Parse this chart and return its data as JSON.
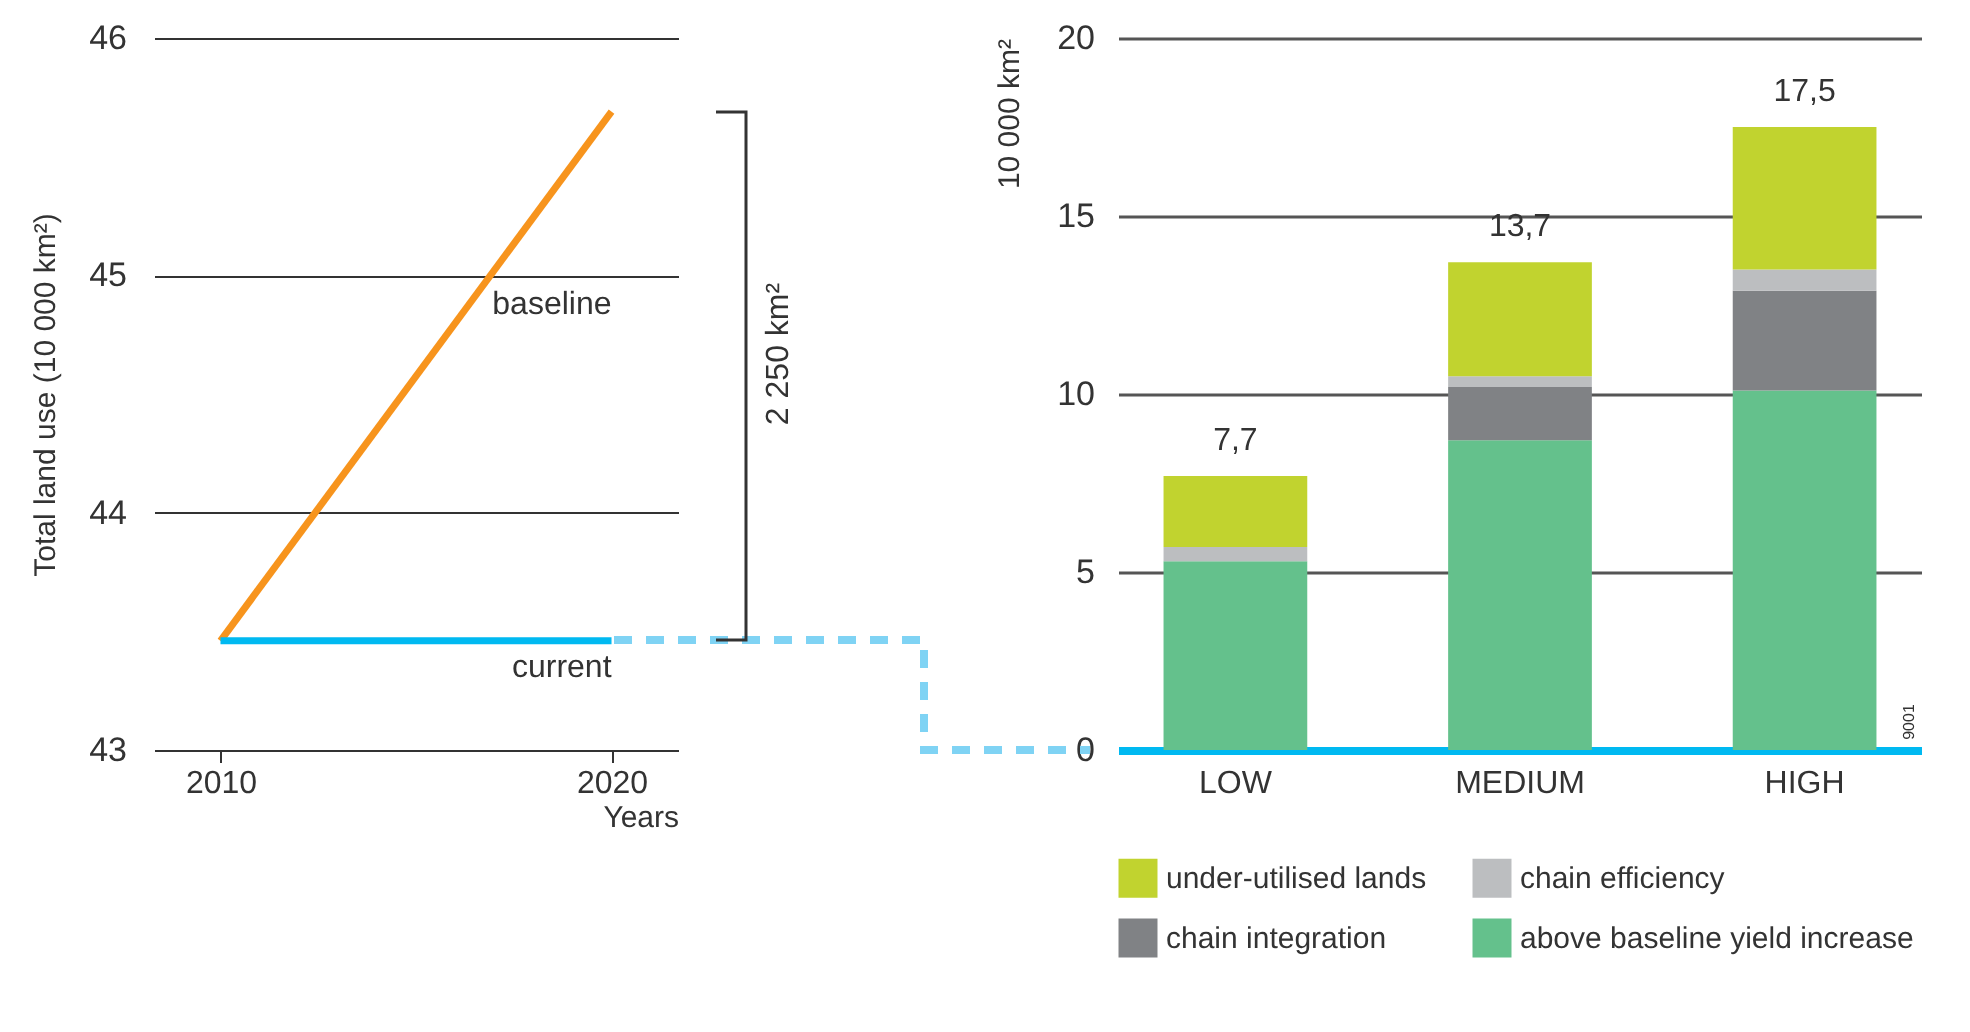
{
  "chart_data": [
    {
      "type": "line",
      "ylabel": "Total land use (10 000 km²)",
      "xlabel": "Years",
      "x": [
        2010,
        2020
      ],
      "xlim": [
        2008.3,
        2021.7
      ],
      "xticks": [
        2010,
        2020
      ],
      "ylim": [
        43,
        46
      ],
      "yticks": [
        43,
        44,
        45,
        46
      ],
      "grid": "y",
      "series": [
        {
          "name": "baseline",
          "color": "#f7941d",
          "values": [
            43.46,
            45.69
          ]
        },
        {
          "name": "current",
          "color": "#00b9f1",
          "values": [
            43.46,
            43.46
          ]
        }
      ],
      "annotations": [
        "2 250 km²"
      ]
    },
    {
      "type": "bar",
      "stacked": true,
      "categories": [
        "LOW",
        "MEDIUM",
        "HIGH"
      ],
      "ylabel": "10 000 km²",
      "ylim": [
        0,
        20
      ],
      "yticks": [
        0,
        5,
        10,
        15,
        20
      ],
      "grid": "y",
      "legend": "bottom",
      "totals": [
        "7,7",
        "13,7",
        "17,5"
      ],
      "series": [
        {
          "name": "above baseline yield increase",
          "color": "#64c18c",
          "values": [
            5.3,
            8.7,
            10.1
          ]
        },
        {
          "name": "chain integration",
          "color": "#808285",
          "values": [
            0,
            1.5,
            2.8
          ]
        },
        {
          "name": "chain efficiency",
          "color": "#bcbec0",
          "values": [
            0.4,
            0.3,
            0.6
          ]
        },
        {
          "name": "under-utilised lands",
          "color": "#c1d32f",
          "values": [
            2.0,
            3.2,
            4.0
          ]
        }
      ],
      "annotations": [
        "9001"
      ]
    }
  ]
}
